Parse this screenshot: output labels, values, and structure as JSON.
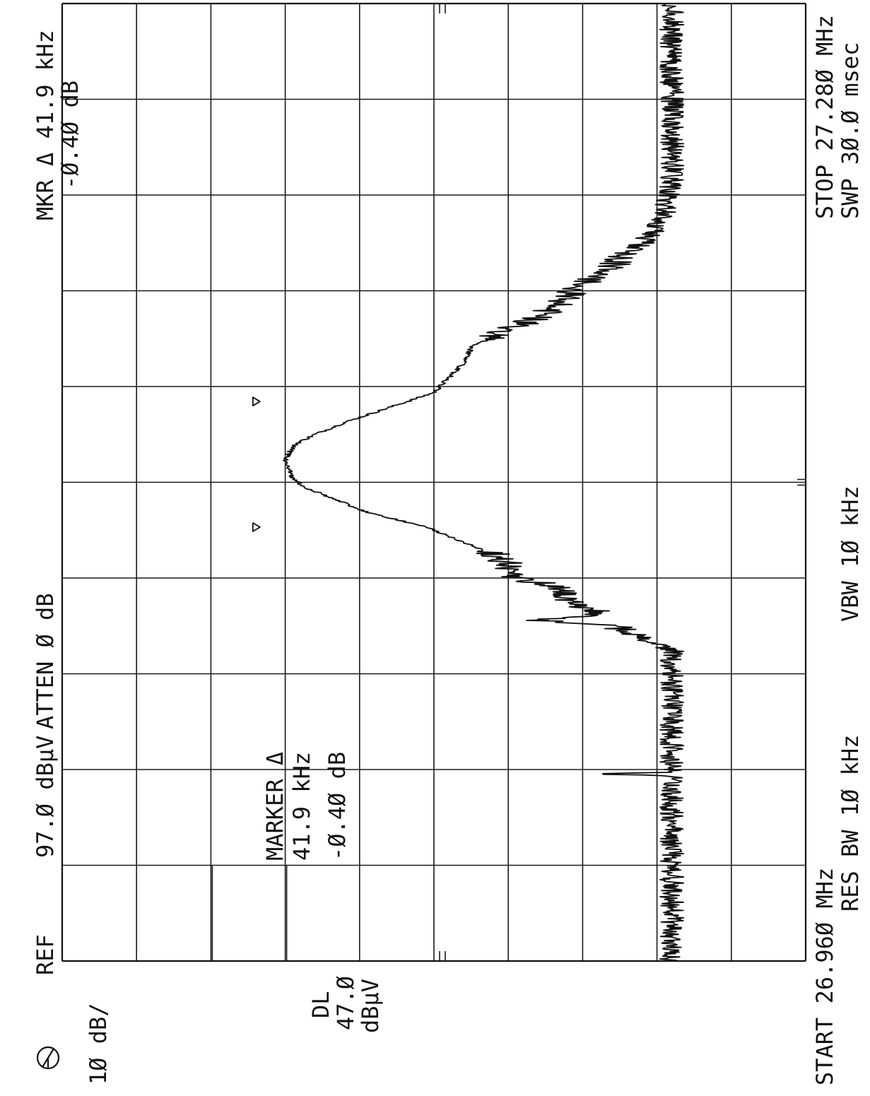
{
  "header": {
    "logo": "hp-logo",
    "ref_label": "REF",
    "ref_value": "97.Ø dBμV",
    "atten": "ATTEN Ø dB",
    "mkr_line1": "MKR Δ 41.9 kHz",
    "mkr_line2": "-Ø.4Ø dB"
  },
  "left_labels": {
    "scale": "1Ø dB/",
    "dl_label": "DL",
    "dl_value": "47.Ø",
    "dl_unit": "dBμV"
  },
  "marker_box": {
    "title": "MARKER Δ",
    "freq": "41.9 kHz",
    "level": "-Ø.4Ø dB"
  },
  "footer": {
    "start": "START 26.96Ø MHz",
    "res_bw": "RES BW 1Ø kHz",
    "vbw": "VBW 1Ø kHz",
    "stop": "STOP 27.28Ø MHz",
    "swp": "SWP 3Ø.Ø msec"
  },
  "chart_data": {
    "type": "line",
    "x_unit": "MHz",
    "y_unit": "dBμV",
    "xlim": [
      26.96,
      27.28
    ],
    "ylim": [
      -3.0,
      97.0
    ],
    "y_divisions": 10,
    "x_divisions": 10,
    "reference_level": 97.0,
    "display_line": 47.0,
    "scale_db_per_div": 10,
    "grid": true,
    "peak": {
      "x": 27.126,
      "y": 67.0
    },
    "noise_floor": 15.0,
    "series": [
      {
        "values": [
          [
            26.96,
            15
          ],
          [
            26.975,
            15
          ],
          [
            26.99,
            15
          ],
          [
            27.005,
            15
          ],
          [
            27.015,
            15
          ],
          [
            27.022,
            15
          ],
          [
            27.0225,
            29
          ],
          [
            27.023,
            15
          ],
          [
            27.035,
            15
          ],
          [
            27.05,
            15
          ],
          [
            27.06,
            15
          ],
          [
            27.064,
            15
          ],
          [
            27.067,
            18
          ],
          [
            27.072,
            23
          ],
          [
            27.074,
            34
          ],
          [
            27.076,
            24
          ],
          [
            27.08,
            29
          ],
          [
            27.085,
            30
          ],
          [
            27.088,
            36
          ],
          [
            27.092,
            37
          ],
          [
            27.095,
            38
          ],
          [
            27.1,
            43
          ],
          [
            27.105,
            48
          ],
          [
            27.11,
            56
          ],
          [
            27.115,
            61
          ],
          [
            27.118,
            64
          ],
          [
            27.121,
            66
          ],
          [
            27.124,
            66.5
          ],
          [
            27.127,
            67
          ],
          [
            27.13,
            66.5
          ],
          [
            27.133,
            65.5
          ],
          [
            27.136,
            63
          ],
          [
            27.14,
            59
          ],
          [
            27.145,
            53
          ],
          [
            27.15,
            47
          ],
          [
            27.155,
            45
          ],
          [
            27.16,
            43
          ],
          [
            27.165,
            42
          ],
          [
            27.17,
            38
          ],
          [
            27.175,
            33
          ],
          [
            27.18,
            30
          ],
          [
            27.185,
            28
          ],
          [
            27.19,
            24
          ],
          [
            27.195,
            22
          ],
          [
            27.2,
            19
          ],
          [
            27.205,
            17
          ],
          [
            27.21,
            16
          ],
          [
            27.22,
            15
          ],
          [
            27.24,
            15
          ],
          [
            27.26,
            15
          ],
          [
            27.28,
            15
          ]
        ]
      }
    ]
  }
}
